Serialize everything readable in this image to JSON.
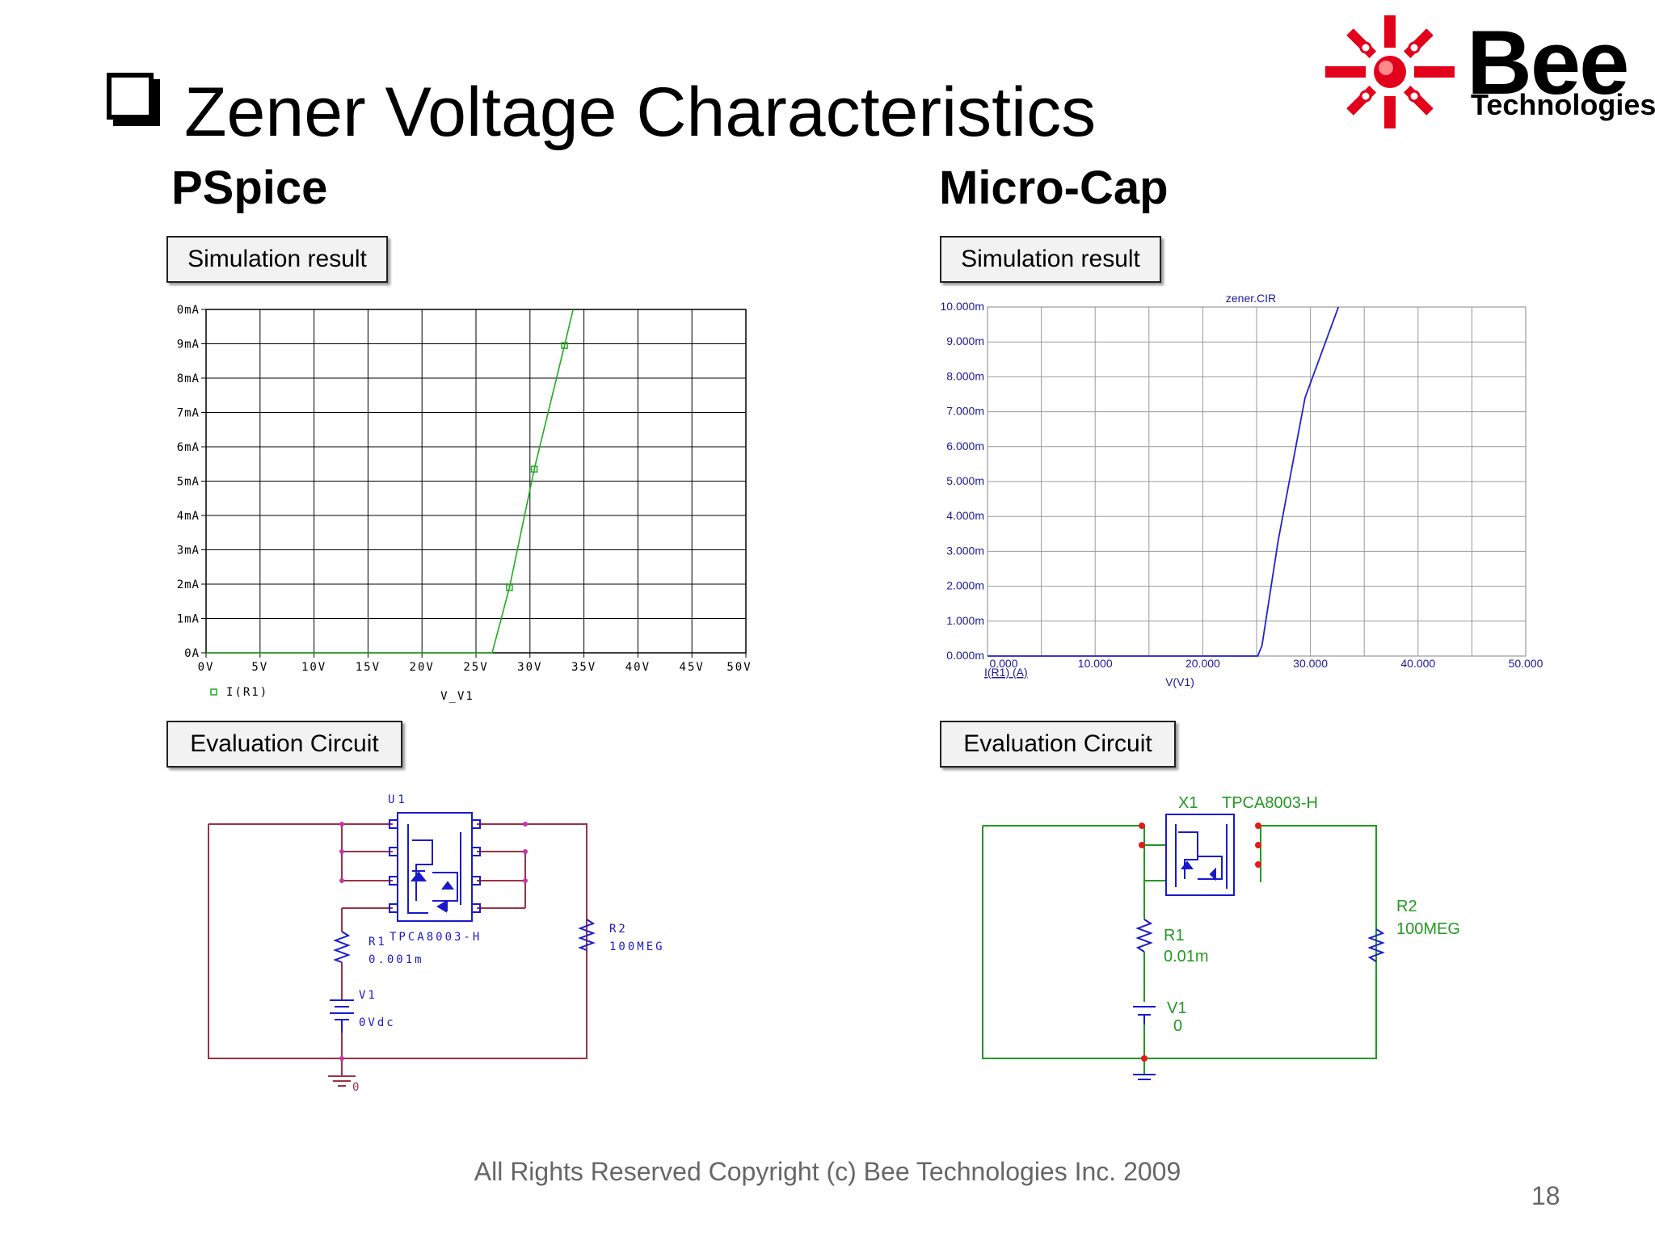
{
  "slide": {
    "title": "Zener Voltage Characteristics",
    "left_heading": "PSpice",
    "right_heading": "Micro-Cap",
    "left_sim_label": "Simulation result",
    "right_sim_label": "Simulation result",
    "left_eval_label": "Evaluation Circuit",
    "right_eval_label": "Evaluation Circuit",
    "footer": "All Rights Reserved Copyright (c) Bee Technologies Inc. 2009",
    "page_number": "18"
  },
  "logo": {
    "name": "Bee",
    "sub": "Technologies",
    "color": "#e3001b"
  },
  "chart_data": [
    {
      "type": "line",
      "tool": "PSpice",
      "x_ticks": [
        "0V",
        "5V",
        "10V",
        "15V",
        "20V",
        "25V",
        "30V",
        "35V",
        "40V",
        "45V",
        "50V"
      ],
      "y_ticks": [
        "0A",
        "1mA",
        "2mA",
        "3mA",
        "4mA",
        "5mA",
        "6mA",
        "7mA",
        "8mA",
        "9mA",
        "0mA"
      ],
      "xlabel": "V_V1",
      "legend": "I(R1)",
      "xlim": [
        0,
        50
      ],
      "ylim": [
        0,
        10
      ],
      "grid": true,
      "color": "#22aa22",
      "series": [
        {
          "name": "I(R1)",
          "x": [
            0,
            26.5,
            28.1,
            30.4,
            33.2,
            34.0
          ],
          "y": [
            0,
            0,
            1.9,
            5.35,
            8.95,
            10
          ]
        }
      ],
      "markers": {
        "x": [
          28.1,
          30.4,
          33.2
        ],
        "y": [
          1.9,
          5.35,
          8.95
        ]
      }
    },
    {
      "type": "line",
      "tool": "Micro-Cap",
      "title": "zener.CIR",
      "x_ticks": [
        "0.000",
        "10.000",
        "20.000",
        "30.000",
        "40.000",
        "50.000"
      ],
      "y_ticks": [
        "0.000m",
        "1.000m",
        "2.000m",
        "3.000m",
        "4.000m",
        "5.000m",
        "6.000m",
        "7.000m",
        "8.000m",
        "9.000m",
        "10.000m"
      ],
      "xlabel": "V(V1)",
      "ylabel": "I(R1) (A)",
      "xlim": [
        0,
        50
      ],
      "ylim": [
        0,
        10
      ],
      "grid": true,
      "color": "#2222cc",
      "series": [
        {
          "name": "I(R1) (A)",
          "x": [
            0,
            25.1,
            25.5,
            27.0,
            29.5,
            32.6
          ],
          "y": [
            0,
            0,
            0.3,
            3.3,
            7.4,
            10
          ]
        }
      ]
    }
  ],
  "circuit_left": {
    "u_label": "U1",
    "part": "TPCA8003-H",
    "r1_name": "R1",
    "r1_value": "0.001m",
    "r2_name": "R2",
    "r2_value": "100MEG",
    "v1_name": "V1",
    "v1_value": "0Vdc",
    "ground_label": "0",
    "wire_color": "#993344",
    "part_color": "#1a1acc"
  },
  "circuit_right": {
    "x_label": "X1",
    "part": "TPCA8003-H",
    "r1_name": "R1",
    "r1_value": "0.01m",
    "r2_name": "R2",
    "r2_value": "100MEG",
    "v1_name": "V1",
    "v1_value": "0",
    "wire_color": "#229922",
    "part_color": "#1a1acc"
  }
}
